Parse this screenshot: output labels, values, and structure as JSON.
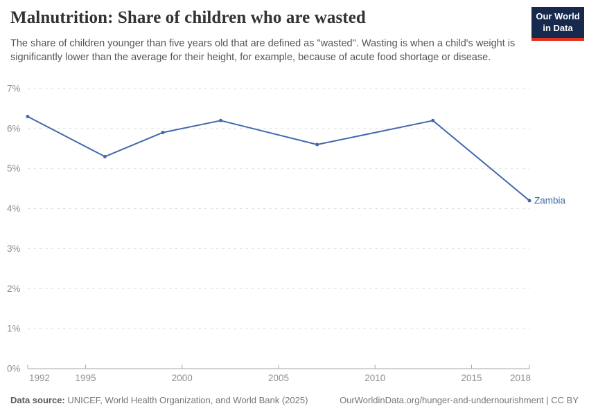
{
  "header": {
    "title": "Malnutrition: Share of children who are wasted",
    "subtitle": "The share of children younger than five years old that are defined as \"wasted\". Wasting is when a child's weight is significantly lower than the average for their height, for example, because of acute food shortage or disease.",
    "logo": {
      "line1": "Our World",
      "line2": "in Data"
    }
  },
  "footer": {
    "data_source_label": "Data source:",
    "data_source_value": " UNICEF, World Health Organization, and World Bank (2025)",
    "attribution": "OurWorldinData.org/hunger-and-undernourishment | CC BY"
  },
  "colors": {
    "accent_line": "#4368aa",
    "title_text": "#333333",
    "subtitle_text": "#555555",
    "axis_label": "#8f8f8f",
    "gridline": "#dddddd",
    "axis_line": "#a5a5a5",
    "logo_background": "#17294d",
    "logo_red": "#e0301f",
    "footer_text": "#757575"
  },
  "chart_data": {
    "type": "line",
    "title": "Malnutrition: Share of children who are wasted",
    "xlabel": "",
    "ylabel": "",
    "xlim": [
      1992,
      2018
    ],
    "ylim": [
      0,
      7
    ],
    "x_ticks": [
      1992,
      1995,
      2000,
      2005,
      2010,
      2015,
      2018
    ],
    "y_ticks": [
      0,
      1,
      2,
      3,
      4,
      5,
      6,
      7
    ],
    "y_tick_suffix": "%",
    "grid": "horizontal-dashed",
    "legend_position": "end-of-line-label",
    "series": [
      {
        "name": "Zambia",
        "color": "#4368aa",
        "x": [
          1992,
          1996,
          1999,
          2002,
          2007,
          2013,
          2018
        ],
        "y": [
          6.3,
          5.3,
          5.9,
          6.2,
          5.6,
          6.2,
          4.2
        ]
      }
    ]
  }
}
